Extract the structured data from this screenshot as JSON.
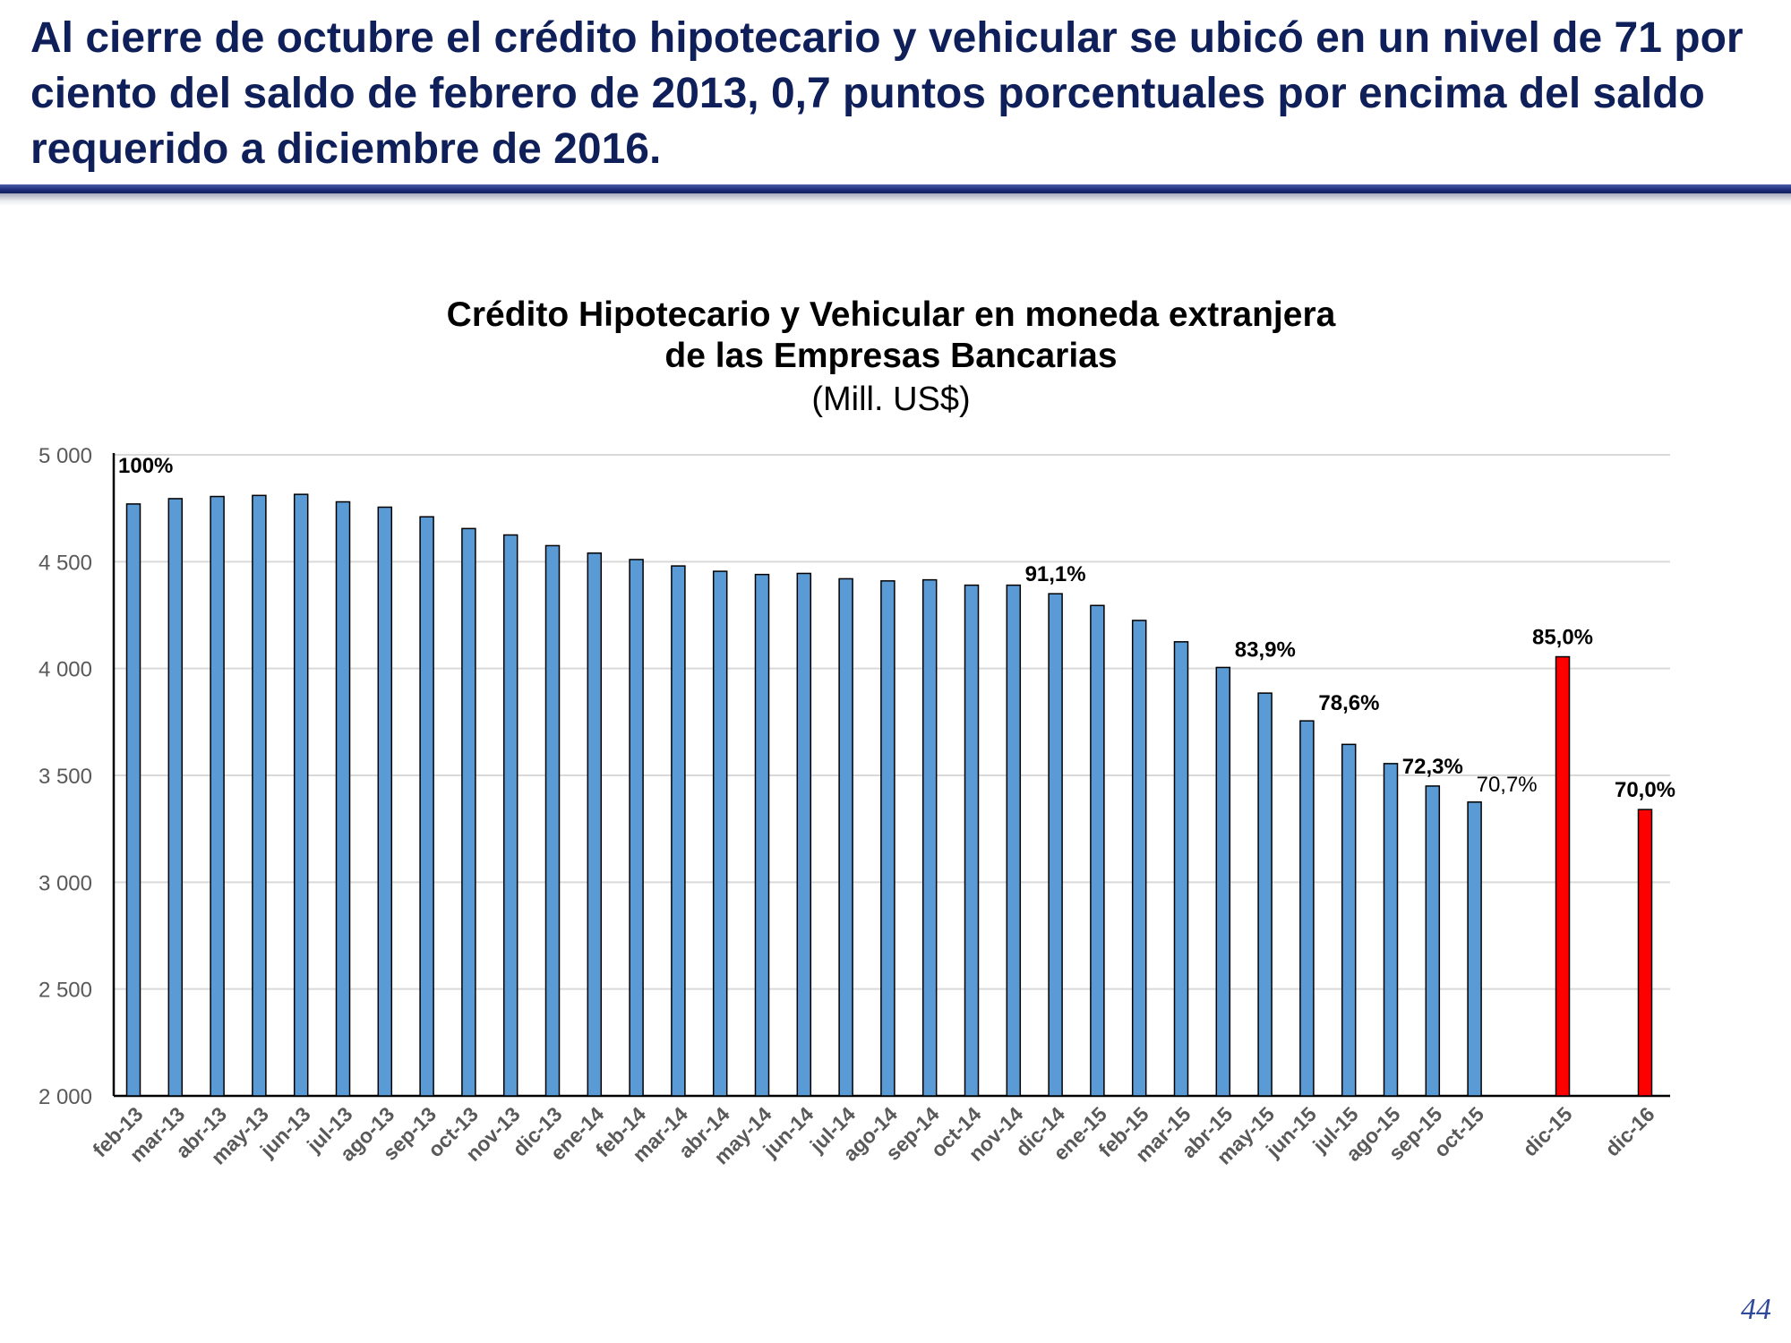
{
  "slide": {
    "headline": "Al cierre de octubre el crédito hipotecario y vehicular se ubicó en un nivel de 71 por ciento del saldo de febrero de 2013, 0,7 puntos porcentuales por encima del saldo requerido a diciembre de 2016.",
    "page_number": "44"
  },
  "colors": {
    "header_text": "#0f1f5a",
    "actual_bar": "#5b9bd5",
    "target_bar": "#ff0000",
    "bar_stroke": "#000000",
    "gridline": "#d9d9d9"
  },
  "chart_data": {
    "type": "bar",
    "title_line1": "Crédito Hipotecario y Vehicular en moneda extranjera",
    "title_line2": "de las Empresas Bancarias",
    "unit": "(Mill. US$)",
    "ylim": [
      2000,
      5000
    ],
    "yticks": [
      2000,
      2500,
      3000,
      3500,
      4000,
      4500,
      5000
    ],
    "ytick_labels": [
      "2 000",
      "2 500",
      "3 000",
      "3 500",
      "4 000",
      "4 500",
      "5 000"
    ],
    "grid": true,
    "legend": "none",
    "categories": [
      "feb-13",
      "mar-13",
      "abr-13",
      "may-13",
      "jun-13",
      "jul-13",
      "ago-13",
      "sep-13",
      "oct-13",
      "nov-13",
      "dic-13",
      "ene-14",
      "feb-14",
      "mar-14",
      "abr-14",
      "may-14",
      "jun-14",
      "jul-14",
      "ago-14",
      "sep-14",
      "oct-14",
      "nov-14",
      "dic-14",
      "ene-15",
      "feb-15",
      "mar-15",
      "abr-15",
      "may-15",
      "jun-15",
      "jul-15",
      "ago-15",
      "sep-15",
      "oct-15",
      "dic-15",
      "dic-16"
    ],
    "values": [
      4770,
      4795,
      4805,
      4810,
      4815,
      4780,
      4755,
      4710,
      4655,
      4625,
      4575,
      4540,
      4510,
      4480,
      4455,
      4440,
      4445,
      4420,
      4410,
      4415,
      4390,
      4390,
      4350,
      4295,
      4225,
      4125,
      4005,
      3885,
      3755,
      3645,
      3555,
      3450,
      3375,
      4055,
      3340
    ],
    "bar_kind": [
      "actual",
      "actual",
      "actual",
      "actual",
      "actual",
      "actual",
      "actual",
      "actual",
      "actual",
      "actual",
      "actual",
      "actual",
      "actual",
      "actual",
      "actual",
      "actual",
      "actual",
      "actual",
      "actual",
      "actual",
      "actual",
      "actual",
      "actual",
      "actual",
      "actual",
      "actual",
      "actual",
      "actual",
      "actual",
      "actual",
      "actual",
      "actual",
      "actual",
      "target",
      "target"
    ],
    "annotations": [
      {
        "category": "feb-13",
        "text": "100%",
        "bold": true,
        "pinned_top": true
      },
      {
        "category": "dic-14",
        "text": "91,1%",
        "bold": true
      },
      {
        "category": "abr-15",
        "text": "83,9%",
        "bold": true
      },
      {
        "category": "jun-15",
        "text": "78,6%",
        "bold": true
      },
      {
        "category": "sep-15",
        "text": "72,3%",
        "bold": true
      },
      {
        "category": "oct-15",
        "text": "70,7%",
        "bold": false
      },
      {
        "category": "dic-15",
        "text": "85,0%",
        "bold": true
      },
      {
        "category": "dic-16",
        "text": "70,0%",
        "bold": true
      }
    ]
  }
}
